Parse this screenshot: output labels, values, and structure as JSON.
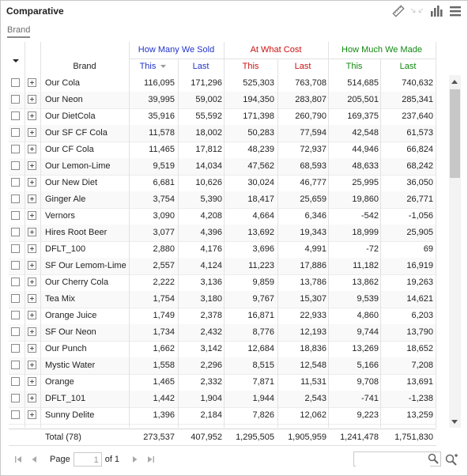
{
  "panel": {
    "title": "Comparative",
    "tab": "Brand"
  },
  "header": {
    "groups": [
      {
        "label": "How Many We Sold",
        "color": "#2233cc"
      },
      {
        "label": "At What Cost",
        "color": "#cc1111"
      },
      {
        "label": "How Much We Made",
        "color": "#118811"
      }
    ],
    "brand_label": "Brand",
    "this_label": "This",
    "last_label": "Last",
    "sort_icon": "sort-descending-icon"
  },
  "rows": [
    [
      "Our Cola",
      "116,095",
      "171,296",
      "525,303",
      "763,708",
      "514,685",
      "740,632"
    ],
    [
      "Our Neon",
      "39,995",
      "59,002",
      "194,350",
      "283,807",
      "205,501",
      "285,341"
    ],
    [
      "Our DietCola",
      "35,916",
      "55,592",
      "171,398",
      "260,790",
      "169,375",
      "237,640"
    ],
    [
      "Our SF CF Cola",
      "11,578",
      "18,002",
      "50,283",
      "77,594",
      "42,548",
      "61,573"
    ],
    [
      "Our CF Cola",
      "11,465",
      "17,812",
      "48,239",
      "72,937",
      "44,946",
      "66,824"
    ],
    [
      "Our Lemon-Lime",
      "9,519",
      "14,034",
      "47,562",
      "68,593",
      "48,633",
      "68,242"
    ],
    [
      "Our New Diet",
      "6,681",
      "10,626",
      "30,024",
      "46,777",
      "25,995",
      "36,050"
    ],
    [
      "Ginger Ale",
      "3,754",
      "5,390",
      "18,417",
      "25,659",
      "19,860",
      "26,771"
    ],
    [
      "Vernors",
      "3,090",
      "4,208",
      "4,664",
      "6,346",
      "-542",
      "-1,056"
    ],
    [
      "Hires Root Beer",
      "3,077",
      "4,396",
      "13,692",
      "19,343",
      "18,999",
      "25,905"
    ],
    [
      "DFLT_100",
      "2,880",
      "4,176",
      "3,696",
      "4,991",
      "-72",
      "69"
    ],
    [
      "SF Our Lemom-Lime",
      "2,557",
      "4,124",
      "11,223",
      "17,886",
      "11,182",
      "16,919"
    ],
    [
      "Our Cherry Cola",
      "2,222",
      "3,136",
      "9,859",
      "13,786",
      "13,862",
      "19,263"
    ],
    [
      "Tea Mix",
      "1,754",
      "3,180",
      "9,767",
      "15,307",
      "9,539",
      "14,621"
    ],
    [
      "Orange Juice",
      "1,749",
      "2,378",
      "16,871",
      "22,933",
      "4,860",
      "6,203"
    ],
    [
      "SF Our Neon",
      "1,734",
      "2,432",
      "8,776",
      "12,193",
      "9,744",
      "13,790"
    ],
    [
      "Our Punch",
      "1,662",
      "3,142",
      "12,684",
      "18,836",
      "13,269",
      "18,652"
    ],
    [
      "Mystic Water",
      "1,558",
      "2,296",
      "8,515",
      "12,548",
      "5,166",
      "7,208"
    ],
    [
      "Orange",
      "1,465",
      "2,332",
      "7,871",
      "11,531",
      "9,708",
      "13,691"
    ],
    [
      "DFLT_101",
      "1,442",
      "1,904",
      "1,944",
      "2,543",
      "-741",
      "-1,238"
    ],
    [
      "Sunny Delite",
      "1,396",
      "2,184",
      "7,826",
      "12,062",
      "9,223",
      "13,259"
    ]
  ],
  "total": [
    "Total (78)",
    "273,537",
    "407,952",
    "1,295,505",
    "1,905,959",
    "1,241,478",
    "1,751,830"
  ],
  "pager": {
    "page_label": "Page",
    "page_value": "1",
    "of_label": "of 1",
    "search_placeholder": ""
  }
}
